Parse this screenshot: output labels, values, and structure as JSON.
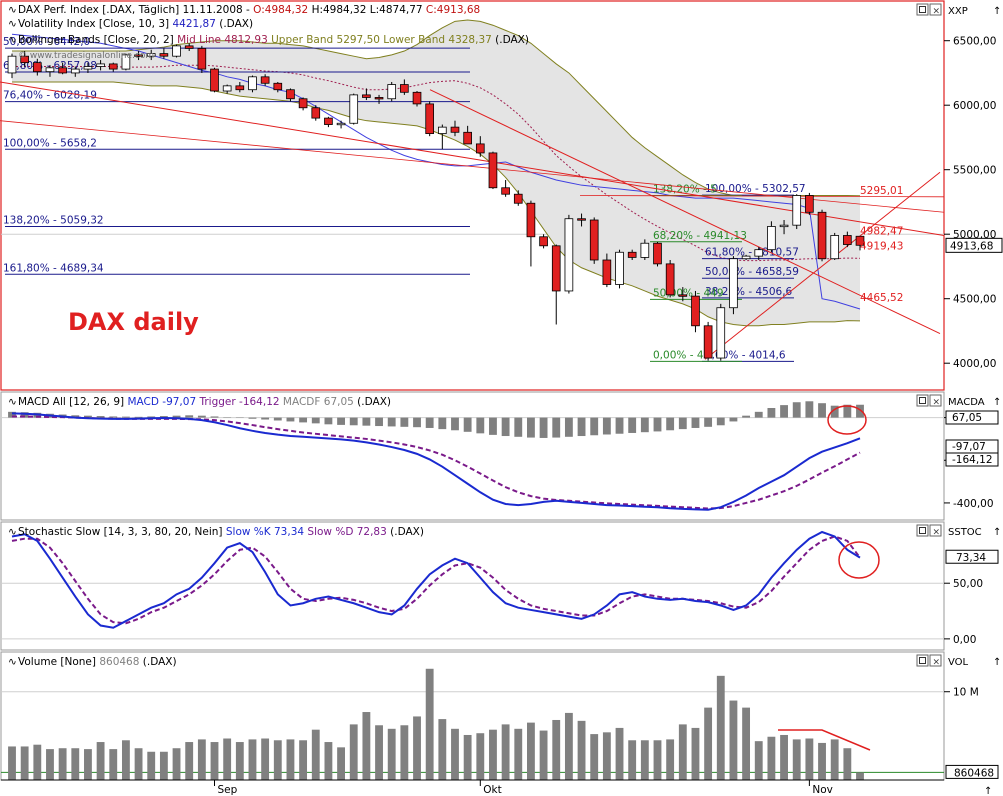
{
  "colors": {
    "up_fill": "#ffffff",
    "down_fill": "#e02020",
    "bollinger_fill": "#e4e4e4",
    "bollinger_band": "#808020",
    "volatility": "#4040e0",
    "midline": "#a02050",
    "trend": "#e02020",
    "fib_blue": "#1a1a8c",
    "fib_green": "#2a8a2a",
    "macd": "#1a2ad0",
    "trigger": "#7a1a8a",
    "hist": "#808080",
    "frame_active": "#e02020",
    "frame": "#9a9a9a",
    "grid": "#cfcfcf"
  },
  "icons": {
    "panel_close": "close-icon",
    "panel_maximize": "maximize-icon",
    "indicator": "wave-icon",
    "axis_arrow": "arrow-up-icon"
  },
  "price_panel": {
    "title_line1": "DAX Perf. Index [.DAX, Täglich] 11.11.2008 -",
    "open": "O:4984,32",
    "high": "H:4984,32",
    "low": "L:4874,77",
    "close": "C:4913,68",
    "vix_label": "Volatility Index [Close, 10, 3]",
    "vix_value": "4421,87",
    "vix_suffix": "(.DAX)",
    "bb_label": "Bollinger Bands [Close, 20, 2]",
    "bb_mid": "Mid Line 4812,93",
    "bb_upper": "Upper Band 5297,50",
    "bb_lower": "Lower Band 4328,37",
    "bb_suffix": "(.DAX)",
    "watermark": "© www.tradesignalonline.com",
    "big_label": "DAX daily",
    "axis_unit": "XXP",
    "axis_ticks": [
      "6500,00",
      "6000,00",
      "5500,00",
      "5000,00",
      "4500,00",
      "4000,00"
    ],
    "current_price": "4913,68",
    "fib_left": [
      "50,00% - 6442,0",
      "61,80% - 6257,08",
      "76,40% - 6028,19",
      "100,00% - 5658,2",
      "138,20% - 5059,32",
      "161,80% - 4689,34"
    ],
    "fib_right_blue": [
      "100,00% - 5302,57",
      "61,80% - 4810,57",
      "50,00% - 4658,59",
      "38,20% - 4506,6",
      "0,00% - 4014,6"
    ],
    "fib_right_green": [
      "138,20% - 5",
      "68,20% - 4941,13",
      "50,00% - 449",
      "0,00% - 40"
    ],
    "levels": [
      "5295,01",
      "4982,47",
      "4919,43",
      "4465,52"
    ]
  },
  "macd_panel": {
    "label": "MACD All [12, 26, 9]",
    "macd": "MACD -97,07",
    "trigger": "Trigger -164,12",
    "macdf": "MACDF 67,05",
    "suffix": "(.DAX)",
    "axis_unit": "MACDA",
    "axis_ticks": [
      "0,00",
      "-200,00",
      "-400,00"
    ],
    "tags": [
      "67,05",
      "-97,07",
      "-164,12"
    ]
  },
  "stoch_panel": {
    "label": "Stochastic Slow [14, 3, 3, 80, 20, Nein]",
    "k": "Slow %K 73,34",
    "d": "Slow %D 72,83",
    "suffix": "(.DAX)",
    "axis_unit": "SSTOC",
    "axis_ticks": [
      "50,00",
      "0,00"
    ],
    "tag": "73,34"
  },
  "volume_panel": {
    "label": "Volume [None]",
    "value": "860468",
    "suffix": "(.DAX)",
    "axis_unit": "VOL",
    "axis_ticks": [
      "10 M"
    ],
    "tag": "860468"
  },
  "x_axis": {
    "labels": [
      "Sep",
      "Okt",
      "Nov"
    ]
  },
  "chart_data": {
    "type": "candlestick",
    "dates_note_labels": [
      "Sep",
      "Okt",
      "Nov"
    ],
    "price_range": [
      3800,
      6800
    ],
    "ohlc": [
      [
        6250,
        6400,
        6210,
        6380
      ],
      [
        6380,
        6420,
        6300,
        6330
      ],
      [
        6330,
        6360,
        6230,
        6260
      ],
      [
        6260,
        6310,
        6220,
        6290
      ],
      [
        6290,
        6330,
        6240,
        6250
      ],
      [
        6250,
        6300,
        6220,
        6280
      ],
      [
        6280,
        6330,
        6250,
        6300
      ],
      [
        6300,
        6350,
        6270,
        6320
      ],
      [
        6320,
        6330,
        6260,
        6280
      ],
      [
        6280,
        6400,
        6270,
        6390
      ],
      [
        6390,
        6420,
        6350,
        6380
      ],
      [
        6380,
        6430,
        6350,
        6400
      ],
      [
        6400,
        6440,
        6360,
        6380
      ],
      [
        6380,
        6470,
        6370,
        6460
      ],
      [
        6460,
        6480,
        6420,
        6440
      ],
      [
        6440,
        6460,
        6250,
        6280
      ],
      [
        6280,
        6290,
        6100,
        6110
      ],
      [
        6110,
        6160,
        6090,
        6150
      ],
      [
        6150,
        6180,
        6100,
        6120
      ],
      [
        6120,
        6230,
        6100,
        6220
      ],
      [
        6220,
        6240,
        6150,
        6170
      ],
      [
        6170,
        6180,
        6100,
        6120
      ],
      [
        6120,
        6130,
        6030,
        6050
      ],
      [
        6050,
        6060,
        5960,
        5980
      ],
      [
        5980,
        6000,
        5880,
        5900
      ],
      [
        5900,
        5910,
        5830,
        5850
      ],
      [
        5850,
        5880,
        5820,
        5860
      ],
      [
        5860,
        6090,
        5850,
        6080
      ],
      [
        6080,
        6130,
        6040,
        6060
      ],
      [
        6060,
        6080,
        6010,
        6050
      ],
      [
        6050,
        6180,
        6030,
        6160
      ],
      [
        6160,
        6200,
        6080,
        6100
      ],
      [
        6100,
        6110,
        5990,
        6010
      ],
      [
        6010,
        6030,
        5760,
        5780
      ],
      [
        5780,
        5850,
        5660,
        5830
      ],
      [
        5830,
        5880,
        5760,
        5790
      ],
      [
        5790,
        5840,
        5700,
        5700
      ],
      [
        5700,
        5760,
        5600,
        5630
      ],
      [
        5630,
        5640,
        5350,
        5360
      ],
      [
        5360,
        5420,
        5290,
        5310
      ],
      [
        5310,
        5340,
        5220,
        5240
      ],
      [
        5240,
        5260,
        4750,
        4980
      ],
      [
        4980,
        5000,
        4890,
        4910
      ],
      [
        4910,
        4920,
        4300,
        4560
      ],
      [
        4560,
        5150,
        4540,
        5120
      ],
      [
        5120,
        5160,
        5060,
        5110
      ],
      [
        5110,
        5130,
        4770,
        4800
      ],
      [
        4800,
        4850,
        4590,
        4610
      ],
      [
        4610,
        4880,
        4580,
        4860
      ],
      [
        4860,
        4880,
        4800,
        4820
      ],
      [
        4820,
        4960,
        4800,
        4930
      ],
      [
        4930,
        4940,
        4750,
        4770
      ],
      [
        4770,
        4800,
        4510,
        4530
      ],
      [
        4530,
        4590,
        4480,
        4520
      ],
      [
        4520,
        4560,
        4240,
        4290
      ],
      [
        4290,
        4320,
        4020,
        4040
      ],
      [
        4040,
        4460,
        4020,
        4430
      ],
      [
        4430,
        4830,
        4380,
        4810
      ],
      [
        4810,
        4840,
        4800,
        4830
      ],
      [
        4830,
        4900,
        4800,
        4880
      ],
      [
        4880,
        5100,
        4860,
        5060
      ],
      [
        5060,
        5110,
        5000,
        5070
      ],
      [
        5070,
        5310,
        5040,
        5300
      ],
      [
        5300,
        5320,
        5150,
        5170
      ],
      [
        5170,
        5190,
        4790,
        4810
      ],
      [
        4810,
        5010,
        4800,
        4990
      ],
      [
        4990,
        5020,
        4900,
        4920
      ],
      [
        4984,
        4984,
        4875,
        4914
      ]
    ],
    "volatility": [
      6550,
      6540,
      6530,
      6520,
      6510,
      6500,
      6490,
      6480,
      6460,
      6440,
      6420,
      6390,
      6360,
      6330,
      6300,
      6270,
      6250,
      6220,
      6200,
      6170,
      6150,
      6120,
      6100,
      6050,
      5990,
      5930,
      5870,
      5810,
      5750,
      5700,
      5650,
      5610,
      5580,
      5560,
      5540,
      5530,
      5530,
      5540,
      5550,
      5560,
      5520,
      5480,
      5450,
      5420,
      5400,
      5380,
      5370,
      5360,
      5350,
      5340,
      5330,
      5320,
      5300,
      5290,
      5280,
      5280,
      5280,
      5280,
      5270,
      5260,
      5250,
      5240,
      5230,
      5200,
      4500,
      4480,
      4450,
      4420
    ],
    "bollinger_upper": [
      6420,
      6420,
      6420,
      6420,
      6420,
      6420,
      6420,
      6420,
      6420,
      6420,
      6430,
      6440,
      6450,
      6470,
      6480,
      6490,
      6500,
      6500,
      6500,
      6490,
      6480,
      6480,
      6470,
      6460,
      6440,
      6420,
      6400,
      6380,
      6360,
      6370,
      6390,
      6420,
      6470,
      6540,
      6600,
      6650,
      6660,
      6650,
      6620,
      6580,
      6540,
      6480,
      6400,
      6320,
      6250,
      6150,
      6050,
      5950,
      5850,
      5750,
      5670,
      5600,
      5530,
      5460,
      5400,
      5350,
      5320,
      5300,
      5300,
      5300,
      5300,
      5300,
      5300,
      5300,
      5300,
      5300,
      5300,
      5298
    ],
    "bollinger_lower": [
      6180,
      6180,
      6180,
      6180,
      6180,
      6180,
      6180,
      6180,
      6180,
      6170,
      6160,
      6150,
      6150,
      6150,
      6140,
      6130,
      6110,
      6090,
      6070,
      6060,
      6050,
      6040,
      6030,
      6010,
      5980,
      5960,
      5930,
      5900,
      5880,
      5870,
      5860,
      5850,
      5840,
      5810,
      5770,
      5730,
      5680,
      5620,
      5540,
      5440,
      5320,
      5180,
      5040,
      4900,
      4800,
      4740,
      4700,
      4660,
      4630,
      4600,
      4560,
      4520,
      4490,
      4460,
      4420,
      4360,
      4320,
      4300,
      4290,
      4290,
      4300,
      4300,
      4310,
      4320,
      4320,
      4320,
      4330,
      4328
    ],
    "bollinger_mid": [
      6300,
      6300,
      6300,
      6300,
      6300,
      6300,
      6300,
      6300,
      6300,
      6295,
      6295,
      6295,
      6300,
      6310,
      6310,
      6310,
      6305,
      6295,
      6285,
      6275,
      6265,
      6260,
      6250,
      6235,
      6210,
      6190,
      6165,
      6140,
      6120,
      6120,
      6125,
      6135,
      6155,
      6175,
      6185,
      6190,
      6170,
      6135,
      6080,
      6010,
      5930,
      5830,
      5720,
      5610,
      5525,
      5445,
      5375,
      5305,
      5240,
      5175,
      5115,
      5060,
      5010,
      4960,
      4910,
      4855,
      4820,
      4800,
      4795,
      4795,
      4800,
      4800,
      4805,
      4810,
      4810,
      4810,
      4815,
      4813
    ],
    "fib_levels_left": [
      6442.0,
      6257.08,
      6028.19,
      5658.2,
      5059.32,
      4689.34
    ],
    "fib_levels_right": [
      5302.57,
      4810.57,
      4658.59,
      4506.6,
      4014.6
    ],
    "marked_levels": [
      5295.01,
      4982.47,
      4919.43,
      4465.52
    ],
    "macd_hist": [
      30,
      28,
      25,
      20,
      16,
      12,
      10,
      8,
      6,
      5,
      4,
      6,
      8,
      10,
      12,
      10,
      6,
      2,
      -2,
      -6,
      -10,
      -15,
      -20,
      -25,
      -30,
      -35,
      -38,
      -40,
      -42,
      -44,
      -46,
      -48,
      -50,
      -54,
      -60,
      -66,
      -74,
      -82,
      -90,
      -96,
      -100,
      -104,
      -106,
      -104,
      -100,
      -96,
      -92,
      -88,
      -84,
      -80,
      -76,
      -72,
      -66,
      -60,
      -54,
      -48,
      -40,
      -20,
      10,
      30,
      50,
      65,
      80,
      85,
      75,
      62,
      67,
      67
    ],
    "macd_line": [
      20,
      18,
      15,
      10,
      5,
      0,
      -3,
      -5,
      -6,
      -6,
      -5,
      -3,
      -2,
      -3,
      -6,
      -12,
      -22,
      -35,
      -50,
      -62,
      -72,
      -80,
      -86,
      -90,
      -94,
      -98,
      -102,
      -108,
      -116,
      -126,
      -138,
      -152,
      -170,
      -196,
      -230,
      -270,
      -310,
      -350,
      -385,
      -405,
      -410,
      -405,
      -395,
      -390,
      -395,
      -400,
      -405,
      -410,
      -412,
      -415,
      -418,
      -420,
      -425,
      -428,
      -430,
      -432,
      -420,
      -395,
      -365,
      -330,
      -300,
      -270,
      -230,
      -190,
      -160,
      -140,
      -120,
      -97
    ],
    "macd_trigger": [
      5,
      5,
      4,
      3,
      2,
      0,
      -2,
      -4,
      -5,
      -6,
      -6,
      -6,
      -6,
      -6,
      -7,
      -8,
      -12,
      -18,
      -26,
      -35,
      -45,
      -54,
      -62,
      -70,
      -76,
      -82,
      -88,
      -94,
      -100,
      -108,
      -116,
      -126,
      -138,
      -154,
      -174,
      -200,
      -230,
      -262,
      -295,
      -326,
      -350,
      -368,
      -380,
      -386,
      -390,
      -394,
      -398,
      -402,
      -405,
      -408,
      -411,
      -414,
      -417,
      -420,
      -423,
      -426,
      -424,
      -415,
      -400,
      -385,
      -365,
      -345,
      -320,
      -290,
      -258,
      -228,
      -196,
      -164
    ],
    "stoch_k": [
      92,
      94,
      88,
      72,
      55,
      38,
      22,
      12,
      10,
      16,
      22,
      28,
      32,
      40,
      45,
      55,
      68,
      82,
      86,
      78,
      60,
      40,
      30,
      32,
      36,
      38,
      35,
      32,
      28,
      24,
      22,
      30,
      45,
      58,
      66,
      72,
      68,
      55,
      42,
      32,
      28,
      26,
      24,
      22,
      20,
      18,
      22,
      30,
      40,
      42,
      38,
      36,
      35,
      36,
      34,
      33,
      30,
      26,
      30,
      40,
      55,
      68,
      80,
      90,
      96,
      92,
      80,
      73
    ],
    "stoch_d": [
      88,
      90,
      90,
      82,
      68,
      52,
      36,
      22,
      15,
      14,
      18,
      24,
      28,
      34,
      40,
      48,
      58,
      70,
      80,
      82,
      74,
      60,
      45,
      36,
      34,
      36,
      37,
      35,
      32,
      28,
      25,
      27,
      36,
      48,
      58,
      66,
      68,
      64,
      55,
      44,
      36,
      30,
      27,
      25,
      23,
      21,
      21,
      25,
      32,
      38,
      40,
      38,
      36,
      36,
      35,
      34,
      32,
      29,
      28,
      33,
      43,
      56,
      68,
      80,
      88,
      92,
      88,
      73
    ],
    "volume_millions": [
      3.8,
      3.8,
      4.0,
      3.5,
      3.6,
      3.6,
      3.5,
      4.3,
      3.5,
      4.5,
      3.6,
      3.2,
      3.2,
      3.6,
      4.3,
      4.6,
      4.3,
      4.7,
      4.3,
      4.6,
      4.7,
      4.5,
      4.6,
      4.5,
      5.7,
      4.3,
      3.7,
      6.3,
      7.7,
      6.2,
      5.8,
      6.2,
      7.2,
      12.6,
      6.9,
      5.8,
      5.1,
      5.3,
      5.7,
      6.3,
      5.8,
      6.5,
      5.6,
      6.8,
      7.6,
      6.7,
      5.2,
      5.4,
      5.9,
      4.5,
      4.5,
      4.5,
      4.6,
      6.3,
      5.9,
      8.2,
      11.8,
      9.0,
      8.2,
      4.4,
      4.9,
      5.1,
      4.6,
      4.7,
      4.2,
      4.6,
      3.6,
      0.86
    ]
  }
}
